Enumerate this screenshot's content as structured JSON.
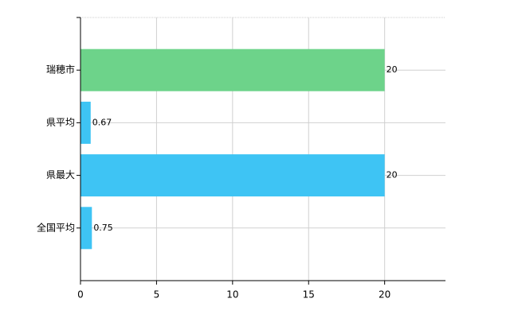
{
  "chart_data": {
    "type": "bar",
    "orientation": "horizontal",
    "categories": [
      "瑞穂市",
      "県平均",
      "県最大",
      "全国平均"
    ],
    "values": [
      20,
      0.67,
      20,
      0.75
    ],
    "colors": [
      "#6dd38a",
      "#3ec4f4",
      "#3ec4f4",
      "#3ec4f4"
    ],
    "xlim": [
      0,
      24
    ],
    "xticks": [
      0,
      5,
      10,
      15,
      20
    ],
    "grid": true,
    "data_labels": true
  }
}
